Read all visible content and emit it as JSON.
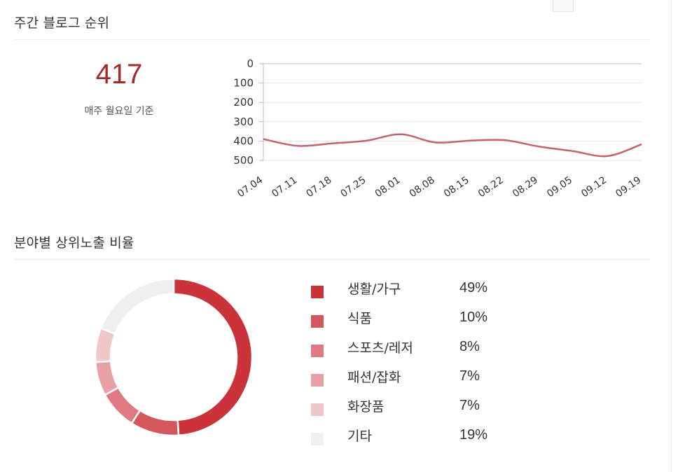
{
  "weekly_rank": {
    "title": "주간 블로그 순위",
    "value": "417",
    "caption": "매주 월요일 기준"
  },
  "category_share": {
    "title": "분야별 상위노출 비율"
  },
  "chart_data": [
    {
      "type": "line",
      "x": [
        "07.04",
        "07.11",
        "07.18",
        "07.25",
        "08.01",
        "08.08",
        "08.15",
        "08.22",
        "08.29",
        "09.05",
        "09.12",
        "09.19"
      ],
      "series": [
        {
          "values": [
            390,
            425,
            412,
            398,
            365,
            407,
            398,
            395,
            428,
            452,
            478,
            417
          ],
          "color": "#c8626a"
        }
      ],
      "y_ticks": [
        0,
        100,
        200,
        300,
        400,
        500
      ],
      "ylim": [
        0,
        500
      ],
      "y_inverted": true,
      "grid": true,
      "title": "",
      "xlabel": "",
      "ylabel": ""
    },
    {
      "type": "pie",
      "donut": true,
      "categories": [
        "생활/가구",
        "식품",
        "스포츠/레저",
        "패션/잡화",
        "화장품",
        "기타"
      ],
      "values": [
        49,
        10,
        8,
        7,
        7,
        19
      ],
      "value_labels": [
        "49%",
        "10%",
        "8%",
        "7%",
        "7%",
        "19%"
      ],
      "colors": [
        "#cc3338",
        "#d4575c",
        "#df7b80",
        "#e8a0a4",
        "#f1c6c8",
        "#efefef"
      ],
      "legend_position": "right"
    }
  ]
}
